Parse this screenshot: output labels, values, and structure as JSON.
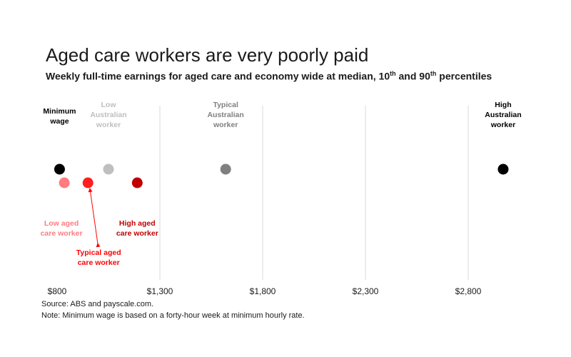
{
  "title": "Aged care workers are very poorly paid",
  "subtitle_parts": {
    "a": "Weekly full-time earnings for aged care and economy wide at median, 10",
    "sup1": "th",
    "b": " and 90",
    "sup2": "th",
    "c": " percentiles"
  },
  "footer": {
    "source": "Source: ABS and payscale.com.",
    "note": "Note: Minimum wage is based on a forty-hour week at minimum hourly rate."
  },
  "colors": {
    "black": "#000000",
    "light_grey": "#bfbfbf",
    "grey": "#808080",
    "pink": "#ff7c80",
    "red": "#ff1f1f",
    "dark_red": "#c00000"
  },
  "chart_data": {
    "type": "scatter",
    "title": "Aged care workers are very poorly paid",
    "xlabel": "",
    "ylabel": "",
    "xlim": [
      800,
      3000
    ],
    "x_ticks": [
      800,
      1300,
      1800,
      2300,
      2800
    ],
    "x_tick_labels": [
      "$800",
      "$1,300",
      "$1,800",
      "$2,300",
      "$2,800"
    ],
    "grid": "vertical",
    "rows": [
      "economy",
      "aged care"
    ],
    "points": [
      {
        "id": "minimum-wage",
        "label": [
          "Minimum",
          "wage"
        ],
        "x": 812,
        "row": "economy",
        "color": "#000000",
        "label_color": "#000000"
      },
      {
        "id": "low-australian",
        "label": [
          "Low",
          "Australian",
          "worker"
        ],
        "x": 1050,
        "row": "economy",
        "color": "#bfbfbf",
        "label_color": "#bfbfbf"
      },
      {
        "id": "typical-australian",
        "label": [
          "Typical",
          "Australian",
          "worker"
        ],
        "x": 1620,
        "row": "economy",
        "color": "#808080",
        "label_color": "#808080"
      },
      {
        "id": "high-australian",
        "label": [
          "High",
          "Australian",
          "worker"
        ],
        "x": 2970,
        "row": "economy",
        "color": "#000000",
        "label_color": "#000000"
      },
      {
        "id": "low-aged-care",
        "label": [
          "Low aged",
          "care worker"
        ],
        "x": 835,
        "row": "aged care",
        "color": "#ff7c80",
        "label_color": "#ff7c80"
      },
      {
        "id": "typical-aged-care",
        "label": [
          "Typical aged",
          "care worker"
        ],
        "x": 950,
        "row": "aged care",
        "color": "#ff1f1f",
        "label_color": "#ff0000"
      },
      {
        "id": "high-aged-care",
        "label": [
          "High aged",
          "care worker"
        ],
        "x": 1190,
        "row": "aged care",
        "color": "#c00000",
        "label_color": "#c00000"
      }
    ]
  }
}
